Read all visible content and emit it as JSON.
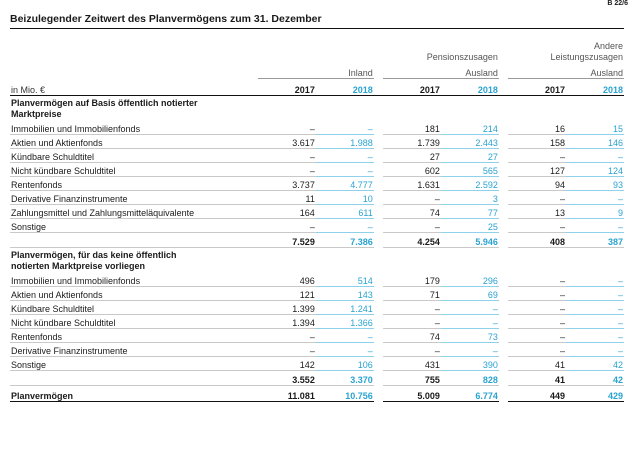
{
  "ref": "B 22/6",
  "title": "Beizulegender Zeitwert des Planvermögens zum 31. Dezember",
  "header": {
    "unit": "in Mio. €",
    "group_pension": "Pensionszusagen",
    "group_other_l1": "Andere",
    "group_other_l2": "Leistungszusagen",
    "sub_inland": "Inland",
    "sub_ausland_1": "Ausland",
    "sub_ausland_2": "Ausland",
    "years": [
      "2017",
      "2018",
      "2017",
      "2018",
      "2017",
      "2018"
    ]
  },
  "section1": {
    "title_l1": "Planvermögen auf Basis öffentlich notierter",
    "title_l2": "Marktpreise",
    "rows": [
      {
        "label": "Immobilien und Immobilienfonds",
        "v": [
          "–",
          "–",
          "181",
          "214",
          "16",
          "15"
        ]
      },
      {
        "label": "Aktien und Aktienfonds",
        "v": [
          "3.617",
          "1.988",
          "1.739",
          "2.443",
          "158",
          "146"
        ]
      },
      {
        "label": "Kündbare Schuldtitel",
        "v": [
          "–",
          "–",
          "27",
          "27",
          "–",
          "–"
        ]
      },
      {
        "label": "Nicht kündbare Schuldtitel",
        "v": [
          "–",
          "–",
          "602",
          "565",
          "127",
          "124"
        ]
      },
      {
        "label": "Rentenfonds",
        "v": [
          "3.737",
          "4.777",
          "1.631",
          "2.592",
          "94",
          "93"
        ]
      },
      {
        "label": "Derivative Finanzinstrumente",
        "v": [
          "11",
          "10",
          "–",
          "3",
          "–",
          "–"
        ]
      },
      {
        "label": "Zahlungsmittel und Zahlungsmitteläquivalente",
        "v": [
          "164",
          "611",
          "74",
          "77",
          "13",
          "9"
        ]
      },
      {
        "label": "Sonstige",
        "v": [
          "–",
          "–",
          "–",
          "25",
          "–",
          "–"
        ]
      }
    ],
    "sum": [
      "7.529",
      "7.386",
      "4.254",
      "5.946",
      "408",
      "387"
    ]
  },
  "section2": {
    "title_l1": "Planvermögen, für das keine öffentlich",
    "title_l2": "notierten Marktpreise vorliegen",
    "rows": [
      {
        "label": "Immobilien und Immobilienfonds",
        "v": [
          "496",
          "514",
          "179",
          "296",
          "–",
          "–"
        ]
      },
      {
        "label": "Aktien und Aktienfonds",
        "v": [
          "121",
          "143",
          "71",
          "69",
          "–",
          "–"
        ]
      },
      {
        "label": "Kündbare Schuldtitel",
        "v": [
          "1.399",
          "1.241",
          "–",
          "–",
          "–",
          "–"
        ]
      },
      {
        "label": "Nicht kündbare Schuldtitel",
        "v": [
          "1.394",
          "1.366",
          "–",
          "–",
          "–",
          "–"
        ]
      },
      {
        "label": "Rentenfonds",
        "v": [
          "–",
          "–",
          "74",
          "73",
          "–",
          "–"
        ]
      },
      {
        "label": "Derivative Finanzinstrumente",
        "v": [
          "–",
          "–",
          "–",
          "–",
          "–",
          "–"
        ]
      },
      {
        "label": "Sonstige",
        "v": [
          "142",
          "106",
          "431",
          "390",
          "41",
          "42"
        ]
      }
    ],
    "sum": [
      "3.552",
      "3.370",
      "755",
      "828",
      "41",
      "42"
    ]
  },
  "total": {
    "label": "Planvermögen",
    "v": [
      "11.081",
      "10.756",
      "5.009",
      "6.774",
      "449",
      "429"
    ]
  }
}
